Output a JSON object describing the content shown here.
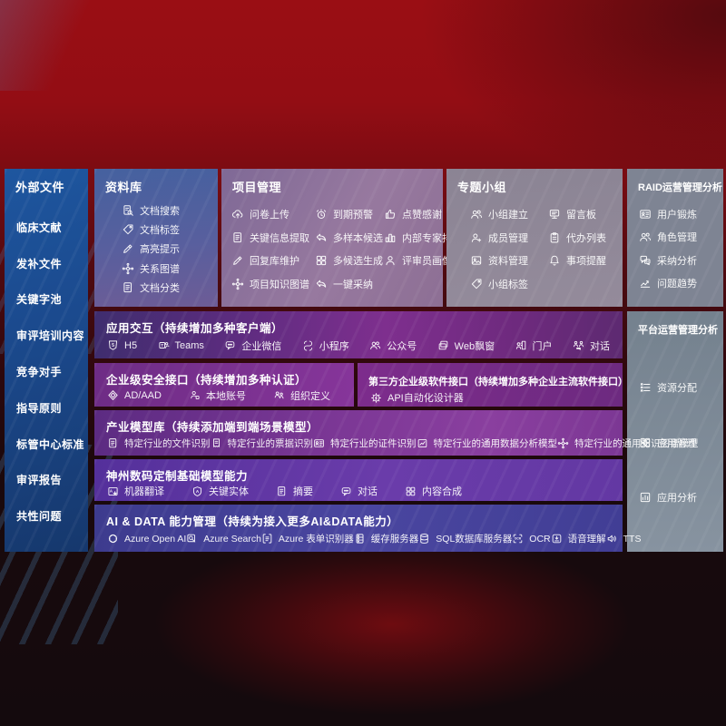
{
  "colors": {
    "top_red": "#980e14",
    "sidebar_blue": "#1c4f97",
    "panel_purple": "#7c2f8e",
    "panel_indigo": "#423f95",
    "panel_gray": "#838795"
  },
  "sidebar": {
    "title": "外部文件",
    "items": [
      "临床文献",
      "发补文件",
      "关键字池",
      "审评培训内容",
      "竞争对手",
      "指导原则",
      "标管中心标准",
      "审评报告",
      "共性问题"
    ]
  },
  "library": {
    "title": "资料库",
    "items": [
      {
        "icon": "doc-search",
        "label": "文档搜索"
      },
      {
        "icon": "tag",
        "label": "文档标签"
      },
      {
        "icon": "pen",
        "label": "高亮提示"
      },
      {
        "icon": "graph",
        "label": "关系图谱"
      },
      {
        "icon": "doc",
        "label": "文档分类"
      }
    ]
  },
  "project": {
    "title": "项目管理",
    "items": [
      {
        "icon": "cloud-up",
        "label": "问卷上传"
      },
      {
        "icon": "alarm",
        "label": "到期预警"
      },
      {
        "icon": "thumb",
        "label": "点赞感谢"
      },
      {
        "icon": "doc",
        "label": "关键信息提取"
      },
      {
        "icon": "reply",
        "label": "多样本候选"
      },
      {
        "icon": "podium",
        "label": "内部专家排名"
      },
      {
        "icon": "pen",
        "label": "回复库维护"
      },
      {
        "icon": "grid",
        "label": "多候选生成"
      },
      {
        "icon": "person",
        "label": "评审员画像"
      },
      {
        "icon": "graph",
        "label": "项目知识图谱"
      },
      {
        "icon": "reply",
        "label": "一键采纳"
      }
    ]
  },
  "workgroup": {
    "title": "专题小组",
    "items": [
      {
        "icon": "people",
        "label": "小组建立"
      },
      {
        "icon": "bbs",
        "label": "留言板"
      },
      {
        "icon": "person-add",
        "label": "成员管理"
      },
      {
        "icon": "clipboard",
        "label": "代办列表"
      },
      {
        "icon": "image",
        "label": "资料管理"
      },
      {
        "icon": "bell",
        "label": "事项提醒"
      },
      {
        "icon": "tag",
        "label": "小组标签"
      }
    ]
  },
  "raid": {
    "title": "RAID运营管理分析",
    "items": [
      {
        "icon": "card",
        "label": "用户锻炼"
      },
      {
        "icon": "people",
        "label": "角色管理"
      },
      {
        "icon": "qa",
        "label": "采纳分析"
      },
      {
        "icon": "trend",
        "label": "问题趋势"
      }
    ]
  },
  "platform": {
    "title": "平台运营管理分析",
    "items": [
      {
        "icon": "list",
        "label": "资源分配"
      },
      {
        "icon": "apps",
        "label": "应用管理"
      },
      {
        "icon": "board",
        "label": "应用分析"
      }
    ]
  },
  "interaction": {
    "title": "应用交互（持续增加多种客户端）",
    "items": [
      {
        "icon": "h5",
        "label": "H5"
      },
      {
        "icon": "teams",
        "label": "Teams"
      },
      {
        "icon": "chat",
        "label": "企业微信"
      },
      {
        "icon": "s-curve",
        "label": "小程序"
      },
      {
        "icon": "people",
        "label": "公众号"
      },
      {
        "icon": "window",
        "label": "Web飘窗"
      },
      {
        "icon": "portal",
        "label": "门户"
      },
      {
        "icon": "dialog",
        "label": "对话"
      }
    ]
  },
  "security": {
    "title": "企业级安全接口（持续增加多种认证）",
    "items": [
      {
        "icon": "shield",
        "label": "AD/AAD"
      },
      {
        "icon": "person-badge",
        "label": "本地账号"
      },
      {
        "icon": "org",
        "label": "组织定义"
      }
    ]
  },
  "thirdparty": {
    "title": "第三方企业级软件接口（持续增加多种企业主流软件接口）",
    "items": [
      {
        "icon": "gear-bolt",
        "label": "API自动化设计器"
      }
    ]
  },
  "industry_models": {
    "title": "产业模型库（持续添加端到端场景模型）",
    "items": [
      {
        "icon": "doc",
        "label": "特定行业的文件识别"
      },
      {
        "icon": "receipt",
        "label": "特定行业的票据识别"
      },
      {
        "icon": "card",
        "label": "特定行业的证件识别"
      },
      {
        "icon": "img-chart",
        "label": "特定行业的通用数据分析模型"
      },
      {
        "icon": "graph",
        "label": "特定行业的通用知识图谱模型"
      }
    ]
  },
  "base_models": {
    "title": "神州数码定制基础模型能力",
    "items": [
      {
        "icon": "translate",
        "label": "机器翻译"
      },
      {
        "icon": "shield-a",
        "label": "关键实体"
      },
      {
        "icon": "doc",
        "label": "摘要"
      },
      {
        "icon": "chat",
        "label": "对话"
      },
      {
        "icon": "grid",
        "label": "内容合成"
      }
    ]
  },
  "ai_data": {
    "title": "AI & DATA 能力管理（持续为接入更多AI&DATA能力）",
    "items": [
      {
        "icon": "openai",
        "label": "Azure Open AI"
      },
      {
        "icon": "search-box",
        "label": "Azure Search"
      },
      {
        "icon": "form",
        "label": "Azure 表单识别器"
      },
      {
        "icon": "server",
        "label": "缓存服务器"
      },
      {
        "icon": "db",
        "label": "SQL数据库服务器"
      },
      {
        "icon": "ocr",
        "label": "OCR"
      },
      {
        "icon": "speech",
        "label": "语音理解"
      },
      {
        "icon": "tts",
        "label": "TTS"
      }
    ]
  }
}
